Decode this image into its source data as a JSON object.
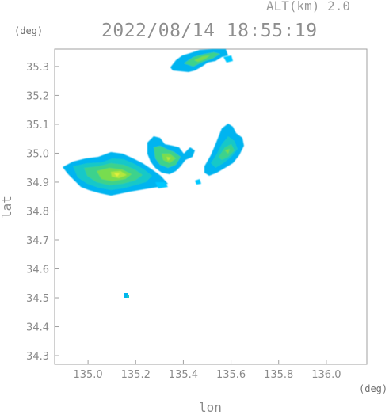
{
  "header": {
    "altitude_label": "ALT(km) 2.0",
    "timestamp": "2022/08/14 18:55:19"
  },
  "axes": {
    "y_unit": "(deg)",
    "x_unit": "(deg)",
    "y_title": "lat",
    "x_title": "lon",
    "x_ticks": [
      "135.0",
      "135.2",
      "135.4",
      "135.6",
      "135.8",
      "136.0"
    ],
    "y_ticks": [
      "34.3",
      "34.4",
      "34.5",
      "34.6",
      "34.7",
      "34.8",
      "34.9",
      "35.0",
      "35.1",
      "35.2",
      "35.3"
    ],
    "x_range": [
      134.86,
      136.17
    ],
    "y_range": [
      34.27,
      35.36
    ],
    "grid": false
  },
  "colors": {
    "axis": "#9a9a9a",
    "echo_levels": [
      "#00c8ff",
      "#00b4f0",
      "#19c8c8",
      "#3cd28c",
      "#78dc50",
      "#b4e63c",
      "#e6f03c"
    ]
  },
  "echo_regions": [
    {
      "name": "north-edge-cell",
      "lon": 135.45,
      "lat": 35.33,
      "peak_level": 3
    },
    {
      "name": "west-band",
      "lon": 135.07,
      "lat": 34.93,
      "peak_level": 6
    },
    {
      "name": "central-cell",
      "lon": 135.36,
      "lat": 34.98,
      "peak_level": 5
    },
    {
      "name": "east-cell",
      "lon": 135.58,
      "lat": 34.99,
      "peak_level": 4
    },
    {
      "name": "isolated-speck",
      "lon": 135.17,
      "lat": 34.51,
      "peak_level": 1
    }
  ]
}
